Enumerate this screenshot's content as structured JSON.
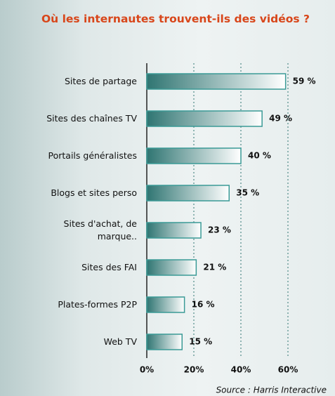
{
  "chart_data": {
    "type": "bar",
    "title": "Où les internautes trouvent-ils des vidéos ?",
    "categories": [
      "Sites de partage",
      "Sites des chaînes TV",
      "Portails généralistes",
      "Blogs et sites perso",
      "Sites d'achat, de\nmarque..",
      "Sites des FAI",
      "Plates-formes P2P",
      "Web TV"
    ],
    "values": [
      59,
      49,
      40,
      35,
      23,
      21,
      16,
      15
    ],
    "value_labels": [
      "59 %",
      "49 %",
      "40 %",
      "35 %",
      "23 %",
      "21 %",
      "16 %",
      "15 %"
    ],
    "color": "#2f7572",
    "xlim": [
      0,
      60
    ],
    "xticks": [
      {
        "value": 0,
        "label": "0%"
      },
      {
        "value": 20,
        "label": "20%"
      },
      {
        "value": 40,
        "label": "40%"
      },
      {
        "value": 60,
        "label": "60%"
      }
    ],
    "grid": true,
    "source": "Source : Harris Interactive"
  }
}
